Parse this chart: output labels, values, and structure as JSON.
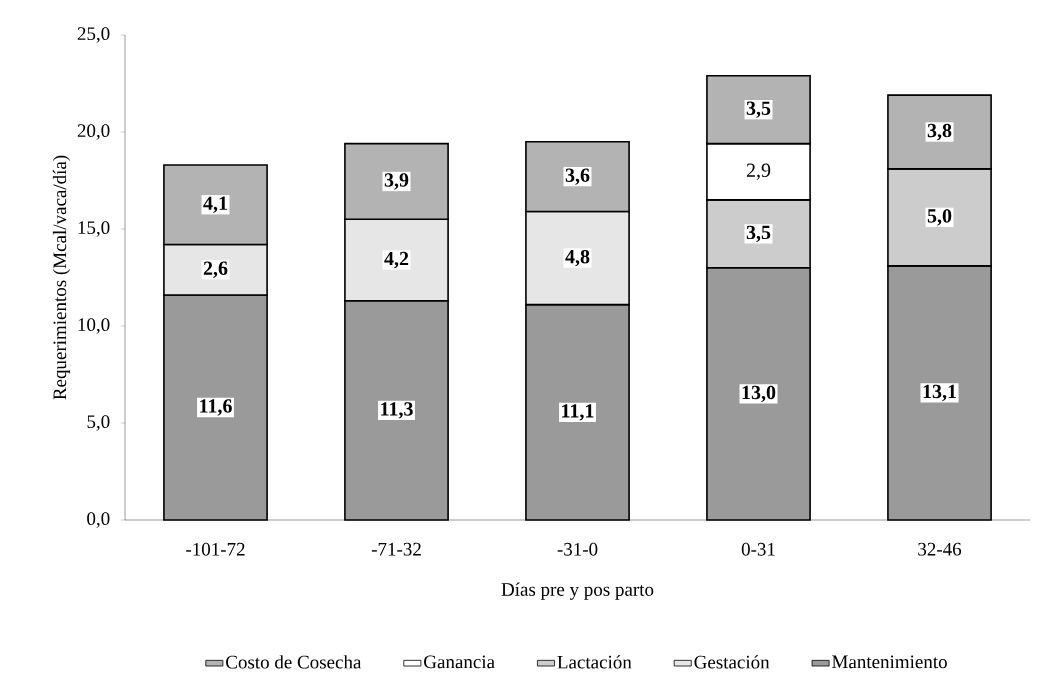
{
  "chart_data": {
    "type": "bar",
    "stacked": true,
    "xlabel": "Días pre y pos parto",
    "ylabel": "Requerimientos (Mcal/vaca/día)",
    "categories": [
      "-101-72",
      "-71-32",
      "-31-0",
      "0-31",
      "32-46"
    ],
    "ylim": [
      0,
      25
    ],
    "yticks": [
      {
        "value": 0,
        "label": "0,0"
      },
      {
        "value": 5,
        "label": "5,0"
      },
      {
        "value": 10,
        "label": "10,0"
      },
      {
        "value": 15,
        "label": "15,0"
      },
      {
        "value": 20,
        "label": "20,0"
      },
      {
        "value": 25,
        "label": "25,0"
      }
    ],
    "legend": "bottom",
    "grid": false,
    "series": [
      {
        "name": "Mantenimiento",
        "color": "#9a9a9a",
        "values": [
          11.6,
          11.3,
          11.1,
          13.0,
          13.1
        ],
        "value_labels": [
          "11,6",
          "11,3",
          "11,1",
          "13,0",
          "13,1"
        ]
      },
      {
        "name": "Gestación",
        "color": "#e6e6e6",
        "values": [
          2.6,
          4.2,
          4.8,
          null,
          null
        ],
        "value_labels": [
          "2,6",
          "4,2",
          "4,8",
          null,
          null
        ]
      },
      {
        "name": "Lactación",
        "color": "#cccccc",
        "values": [
          null,
          null,
          null,
          3.5,
          5.0
        ],
        "value_labels": [
          null,
          null,
          null,
          "3,5",
          "5,0"
        ]
      },
      {
        "name": "Ganancia",
        "color": "#ffffff",
        "values": [
          null,
          null,
          null,
          2.9,
          null
        ],
        "value_labels": [
          null,
          null,
          null,
          "2,9",
          null
        ]
      },
      {
        "name": "Costo de Cosecha",
        "color": "#b3b3b3",
        "values": [
          4.1,
          3.9,
          3.6,
          3.5,
          3.8
        ],
        "value_labels": [
          "4,1",
          "3,9",
          "3,6",
          "3,5",
          "3,8"
        ]
      }
    ]
  }
}
